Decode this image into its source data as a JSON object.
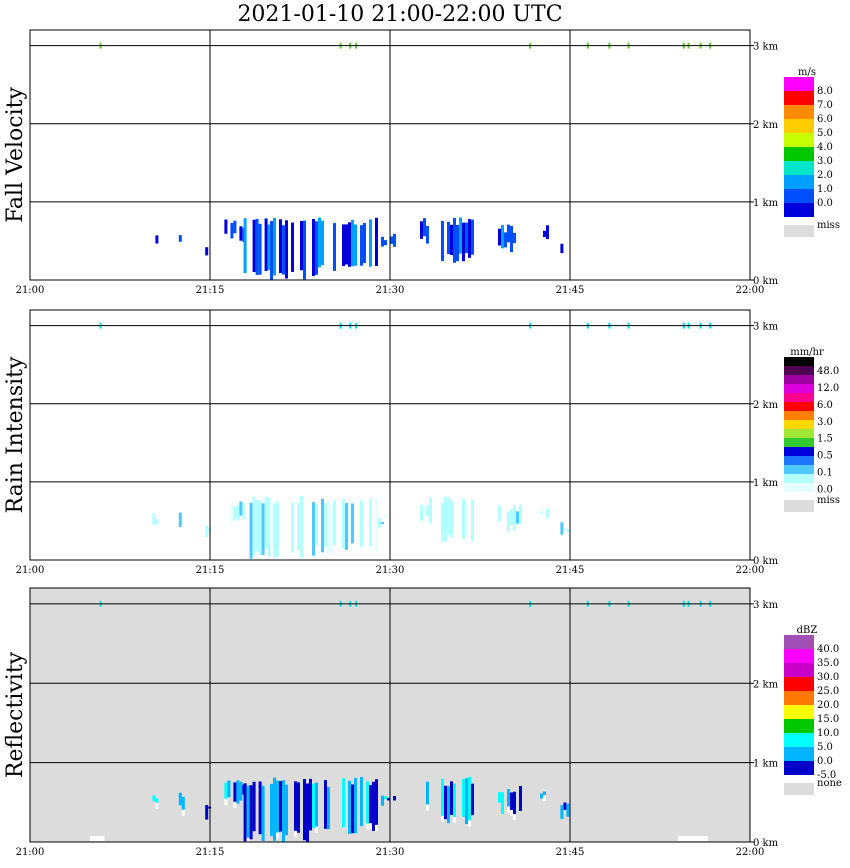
{
  "title": "2021-01-10   21:00-22:00 UTC",
  "x_tick_labels": [
    "21:00",
    "21:15",
    "21:30",
    "21:45",
    "22:00"
  ],
  "y_tick_labels": [
    "0 km",
    "1 km",
    "2 km",
    "3 km"
  ],
  "chart_data": [
    {
      "type": "heatmap",
      "ylabel": "Fall Velocity",
      "xlim": [
        "21:00",
        "22:00"
      ],
      "ylim_km": [
        0,
        3
      ],
      "grid": true,
      "background": "#ffffff",
      "colorbar": {
        "unit": "m/s",
        "labels": [
          "8.0",
          "7.0",
          "6.0",
          "5.0",
          "4.0",
          "3.0",
          "2.0",
          "1.0",
          "0.0"
        ],
        "colors": [
          "#ff00ff",
          "#ff0000",
          "#ff8c00",
          "#ffcc00",
          "#c8ff00",
          "#00c800",
          "#00e6c8",
          "#00a0ff",
          "#0050ff",
          "#0000dc"
        ],
        "miss_label": "miss",
        "miss_color": "#dcdcdc"
      }
    },
    {
      "type": "heatmap",
      "ylabel": "Rain Intensity",
      "xlim": [
        "21:00",
        "22:00"
      ],
      "ylim_km": [
        0,
        3
      ],
      "grid": true,
      "background": "#ffffff",
      "colorbar": {
        "unit": "mm/hr",
        "labels": [
          "48.0",
          "12.0",
          "6.0",
          "3.0",
          "1.5",
          "0.5",
          "0.1",
          "0.0"
        ],
        "colors": [
          "#000000",
          "#500050",
          "#a000a0",
          "#dc00dc",
          "#ff0090",
          "#ff0000",
          "#ff8000",
          "#ffd700",
          "#a0e632",
          "#32c832",
          "#0000dc",
          "#1e78ff",
          "#50c8ff",
          "#b4ffff",
          "#e6ffff"
        ],
        "miss_label": "miss",
        "miss_color": "#dcdcdc"
      }
    },
    {
      "type": "heatmap",
      "ylabel": "Reflectivity",
      "xlim": [
        "21:00",
        "22:00"
      ],
      "ylim_km": [
        0,
        3
      ],
      "grid": true,
      "background": "#dcdcdc",
      "colorbar": {
        "unit": "dBZ",
        "labels": [
          "40.0",
          "35.0",
          "30.0",
          "25.0",
          "20.0",
          "15.0",
          "10.0",
          "5.0",
          "0.0",
          "-5.0"
        ],
        "colors": [
          "#a050b4",
          "#ff00ff",
          "#c800c8",
          "#ff0000",
          "#ff7800",
          "#ffff00",
          "#00c800",
          "#00ffff",
          "#00b4ff",
          "#0000c8"
        ],
        "miss_label": "none",
        "miss_color": "#dcdcdc"
      }
    }
  ]
}
